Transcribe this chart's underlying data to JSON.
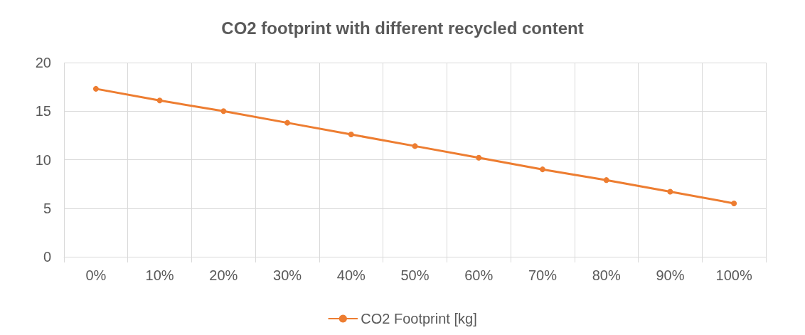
{
  "chart_data": {
    "type": "line",
    "title": "CO2 footprint with different recycled content",
    "categories": [
      "0%",
      "10%",
      "20%",
      "30%",
      "40%",
      "50%",
      "60%",
      "70%",
      "80%",
      "90%",
      "100%"
    ],
    "series": [
      {
        "name": "CO2 Footprint [kg]",
        "color": "#ed7d31",
        "values": [
          17.3,
          16.1,
          15.0,
          13.8,
          12.6,
          11.4,
          10.2,
          9.0,
          7.9,
          6.7,
          5.5
        ]
      }
    ],
    "ylim": [
      0,
      20
    ],
    "yticks": [
      0,
      5,
      10,
      15,
      20
    ],
    "grid": true,
    "legend": "bottom",
    "marker": "circle",
    "line_style": "solid"
  }
}
